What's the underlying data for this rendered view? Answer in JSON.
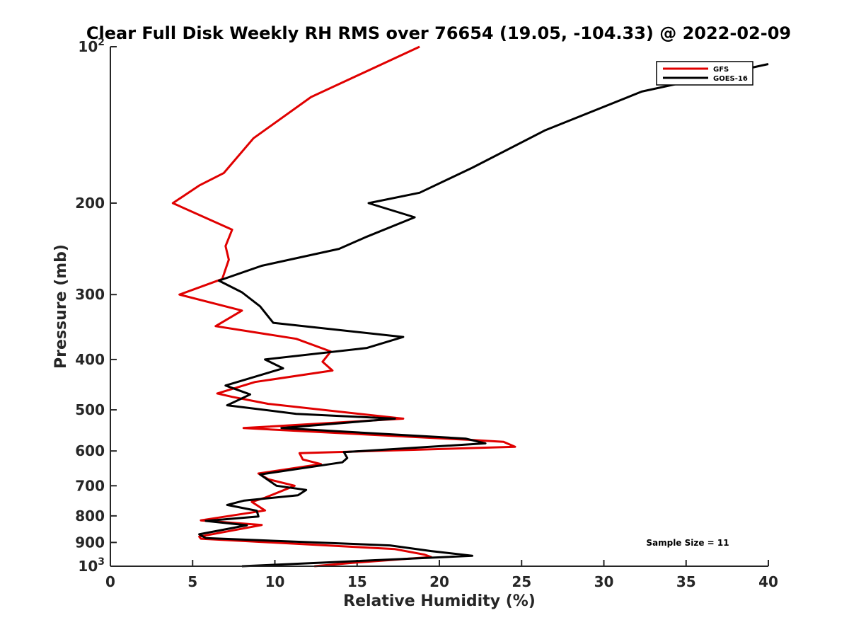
{
  "chart_data": {
    "type": "line",
    "title": "Clear Full Disk Weekly RH RMS over 76654 (19.05, -104.33) @ 2022-02-09",
    "xlabel": "Relative Humidity (%)",
    "ylabel": "Pressure (mb)",
    "xlim": [
      0,
      40
    ],
    "ylim": [
      100,
      1000
    ],
    "yscale": "log",
    "yreversed": true,
    "x_ticks": [
      "0",
      "5",
      "10",
      "15",
      "20",
      "25",
      "30",
      "35",
      "40"
    ],
    "x_tick_values": [
      0,
      5,
      10,
      15,
      20,
      25,
      30,
      35,
      40
    ],
    "y_ticks": [
      {
        "value": 100,
        "base": "10",
        "exp": "2"
      },
      {
        "value": 200,
        "label": "200"
      },
      {
        "value": 300,
        "label": "300"
      },
      {
        "value": 400,
        "label": "400"
      },
      {
        "value": 500,
        "label": "500"
      },
      {
        "value": 600,
        "label": "600"
      },
      {
        "value": 700,
        "label": "700"
      },
      {
        "value": 800,
        "label": "800"
      },
      {
        "value": 900,
        "label": "900"
      },
      {
        "value": 1000,
        "base": "10",
        "exp": "3"
      }
    ],
    "legend_position": "top-right",
    "annotation": "Sample Size = 11",
    "series": [
      {
        "name": "GFS",
        "color": "#e00000",
        "points": [
          [
            18.8,
            100
          ],
          [
            12.2,
            125
          ],
          [
            8.7,
            150
          ],
          [
            6.9,
            175
          ],
          [
            5.4,
            185
          ],
          [
            3.8,
            200
          ],
          [
            7.4,
            225
          ],
          [
            7.0,
            242
          ],
          [
            7.2,
            257
          ],
          [
            6.8,
            280
          ],
          [
            4.2,
            300
          ],
          [
            8.0,
            322
          ],
          [
            6.4,
            345
          ],
          [
            11.3,
            365
          ],
          [
            13.4,
            386
          ],
          [
            12.9,
            404
          ],
          [
            13.5,
            420
          ],
          [
            8.8,
            442
          ],
          [
            6.5,
            465
          ],
          [
            7.4,
            472
          ],
          [
            9.6,
            487
          ],
          [
            17.8,
            520
          ],
          [
            8.1,
            542
          ],
          [
            21.8,
            571
          ],
          [
            23.9,
            576
          ],
          [
            24.6,
            589
          ],
          [
            11.5,
            606
          ],
          [
            11.7,
            623
          ],
          [
            12.8,
            636
          ],
          [
            9.0,
            663
          ],
          [
            9.6,
            680
          ],
          [
            11.2,
            700
          ],
          [
            9.4,
            738
          ],
          [
            8.6,
            752
          ],
          [
            9.4,
            781
          ],
          [
            5.5,
            816
          ],
          [
            9.2,
            833
          ],
          [
            5.4,
            877
          ],
          [
            5.5,
            885
          ],
          [
            17.3,
            927
          ],
          [
            19.1,
            950
          ],
          [
            19.5,
            960
          ],
          [
            14.7,
            985
          ],
          [
            12.4,
            1000
          ]
        ]
      },
      {
        "name": "GOES-16",
        "color": "#000000",
        "points": [
          [
            40.0,
            108
          ],
          [
            32.3,
            122
          ],
          [
            26.4,
            145
          ],
          [
            22.0,
            171
          ],
          [
            18.8,
            191
          ],
          [
            15.7,
            200
          ],
          [
            18.5,
            213
          ],
          [
            15.6,
            232
          ],
          [
            13.9,
            245
          ],
          [
            9.2,
            264
          ],
          [
            6.6,
            282
          ],
          [
            8.0,
            297
          ],
          [
            9.1,
            316
          ],
          [
            9.9,
            340
          ],
          [
            17.8,
            362
          ],
          [
            15.6,
            380
          ],
          [
            9.4,
            400
          ],
          [
            10.5,
            416
          ],
          [
            7.0,
            449
          ],
          [
            8.5,
            467
          ],
          [
            7.1,
            490
          ],
          [
            11.3,
            509
          ],
          [
            17.3,
            520
          ],
          [
            10.4,
            542
          ],
          [
            21.6,
            568
          ],
          [
            22.8,
            580
          ],
          [
            14.2,
            603
          ],
          [
            14.4,
            619
          ],
          [
            14.1,
            631
          ],
          [
            9.1,
            666
          ],
          [
            10.1,
            700
          ],
          [
            11.9,
            713
          ],
          [
            11.4,
            730
          ],
          [
            8.1,
            748
          ],
          [
            7.1,
            762
          ],
          [
            8.9,
            782
          ],
          [
            9.0,
            802
          ],
          [
            5.8,
            818
          ],
          [
            8.3,
            834
          ],
          [
            5.4,
            868
          ],
          [
            5.8,
            883
          ],
          [
            17.0,
            912
          ],
          [
            19.5,
            935
          ],
          [
            22.0,
            955
          ],
          [
            12.6,
            985
          ],
          [
            8.0,
            1000
          ]
        ]
      }
    ]
  }
}
